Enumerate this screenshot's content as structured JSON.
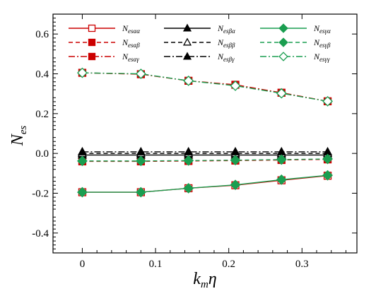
{
  "chart_data": {
    "type": "line",
    "xlabel": "k_m η",
    "ylabel": "N_es",
    "xlim": [
      -0.04,
      0.375
    ],
    "ylim": [
      -0.5,
      0.7
    ],
    "xticks": [
      0,
      0.1,
      0.2,
      0.3
    ],
    "xtick_labels": [
      "0",
      "0.1",
      "0.2",
      "0.3"
    ],
    "yticks": [
      -0.4,
      -0.2,
      0.0,
      0.2,
      0.4,
      0.6
    ],
    "ytick_labels": [
      "-0.4",
      "-0.2",
      "0.0",
      "0.2",
      "0.4",
      "0.6"
    ],
    "x": [
      0,
      0.08,
      0.145,
      0.209,
      0.272,
      0.335
    ],
    "legend_position": "top",
    "series": [
      {
        "name": "N_esαα",
        "sub": "esαα",
        "color": "#cc0000",
        "dash": "",
        "marker": "square",
        "fill": "none",
        "values": [
          -0.195,
          -0.195,
          -0.175,
          -0.16,
          -0.135,
          -0.112
        ]
      },
      {
        "name": "N_esαβ",
        "sub": "esαβ",
        "color": "#cc0000",
        "dash": "6,4",
        "marker": "square",
        "fill": "solid",
        "values": [
          -0.04,
          -0.04,
          -0.038,
          -0.036,
          -0.033,
          -0.03
        ]
      },
      {
        "name": "N_esαγ",
        "sub": "esαγ",
        "color": "#cc0000",
        "dash": "9,3,2,3",
        "marker": "square",
        "fill": "solid",
        "values": [
          0.405,
          0.398,
          0.365,
          0.345,
          0.305,
          0.262
        ]
      },
      {
        "name": "N_esβα",
        "sub": "esβα",
        "color": "#000000",
        "dash": "",
        "marker": "triangle",
        "fill": "solid",
        "values": [
          -0.008,
          -0.008,
          -0.008,
          -0.008,
          -0.008,
          -0.008
        ]
      },
      {
        "name": "N_esββ",
        "sub": "esββ",
        "color": "#000000",
        "dash": "6,4",
        "marker": "triangle",
        "fill": "none",
        "values": [
          0.0,
          0.0,
          0.0,
          0.0,
          0.0,
          0.0
        ]
      },
      {
        "name": "N_esβγ",
        "sub": "esβγ",
        "color": "#000000",
        "dash": "9,3,2,3",
        "marker": "triangle",
        "fill": "solid",
        "values": [
          0.008,
          0.008,
          0.008,
          0.008,
          0.008,
          0.008
        ]
      },
      {
        "name": "N_esγα",
        "sub": "esγα",
        "color": "#1a9e50",
        "dash": "",
        "marker": "diamond",
        "fill": "solid",
        "values": [
          -0.195,
          -0.195,
          -0.175,
          -0.158,
          -0.132,
          -0.11
        ]
      },
      {
        "name": "N_esγβ",
        "sub": "esγβ",
        "color": "#1a9e50",
        "dash": "6,4",
        "marker": "diamond",
        "fill": "solid",
        "values": [
          -0.038,
          -0.038,
          -0.036,
          -0.034,
          -0.031,
          -0.028
        ]
      },
      {
        "name": "N_esγγ",
        "sub": "esγγ",
        "color": "#1a9e50",
        "dash": "9,3,2,3",
        "marker": "diamond",
        "fill": "none",
        "values": [
          0.405,
          0.4,
          0.365,
          0.34,
          0.302,
          0.262
        ]
      }
    ]
  }
}
